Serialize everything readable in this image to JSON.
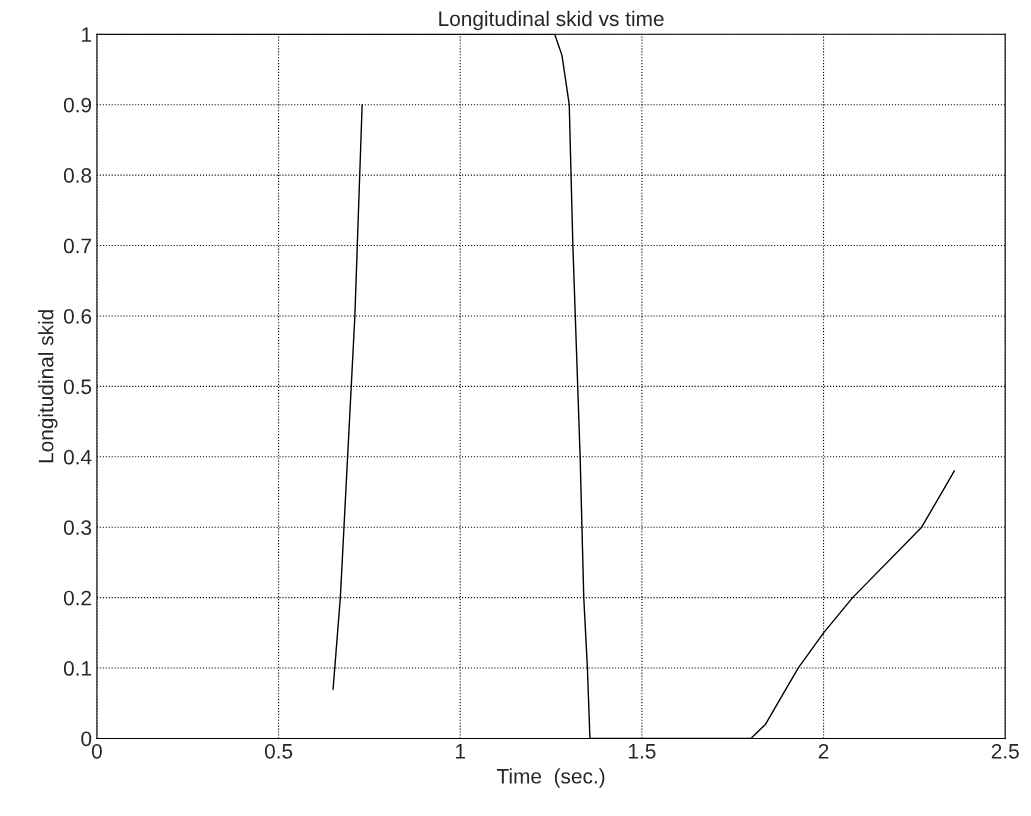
{
  "chart_data": {
    "type": "line",
    "title": "Longitudinal skid vs time",
    "xlabel": "Time  (sec.)",
    "ylabel": "Longitudinal skid",
    "xlim": [
      0,
      2.5
    ],
    "xticks": [
      0,
      0.5,
      1,
      1.5,
      2,
      2.5
    ],
    "ylim": [
      0,
      1
    ],
    "yticks": [
      0,
      0.1,
      0.2,
      0.3,
      0.4,
      0.5,
      0.6,
      0.7,
      0.8,
      0.9,
      1
    ],
    "grid": true,
    "series": [
      {
        "color": "#000000",
        "x": [
          0,
          1.26,
          1.28,
          1.3,
          1.31,
          1.32,
          1.33,
          1.34,
          1.35,
          1.357,
          1.8,
          1.84,
          1.93,
          2.0,
          2.08,
          2.27,
          2.36
        ],
        "values": [
          1,
          1,
          0.97,
          0.9,
          0.7,
          0.55,
          0.4,
          0.2,
          0.1,
          0,
          0,
          0.02,
          0.1,
          0.15,
          0.2,
          0.3,
          0.38
        ]
      },
      {
        "color": "#000000",
        "x": [
          0.65,
          0.67,
          0.69,
          0.71,
          0.72,
          0.73
        ],
        "values": [
          0.07,
          0.2,
          0.4,
          0.6,
          0.75,
          0.9
        ]
      }
    ]
  }
}
